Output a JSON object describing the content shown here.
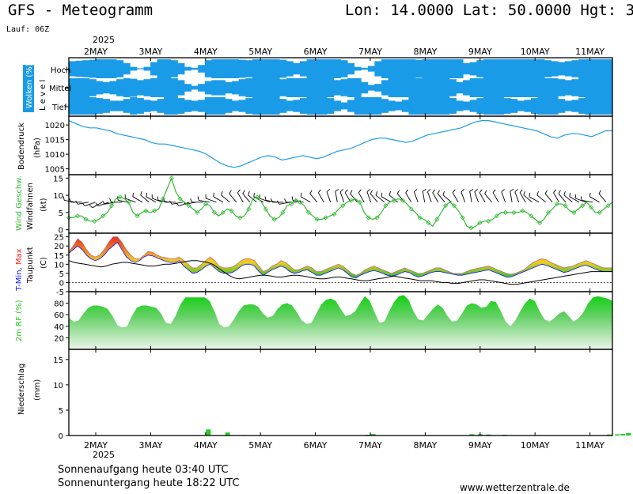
{
  "header": {
    "title": "GFS - Meteogramm",
    "location": "Lon: 14.0000 Lat: 50.0000 Hgt: 3",
    "run": "Lauf: 06Z",
    "year_top": "2025",
    "year_bottom": "2025"
  },
  "footer": {
    "sunrise": "Sonnenaufgang heute 03:40 UTC",
    "sunset": "Sonnenuntergang heute 18:22 UTC",
    "source": "www.wetterzentrale.de"
  },
  "colors": {
    "cloud": "#1a9be8",
    "pressure": "#1a9be8",
    "wind": "#33bb33",
    "tmin": "#1010ff",
    "tmax": "#ff2020",
    "rh": "#22cc22",
    "precip": "#22cc22"
  },
  "chart_data": [
    {
      "type": "heatmap",
      "panel": "clouds",
      "ylabel": "Wolken (%)",
      "ylabel2": "L e v e l",
      "categories": [
        "Hoch",
        "Mittel",
        "Tief"
      ],
      "x_day_ticks": [
        "2MAY",
        "3MAY",
        "4MAY",
        "5MAY",
        "6MAY",
        "7MAY",
        "8MAY",
        "9MAY",
        "10MAY",
        "11MAY"
      ],
      "hoch": [
        80,
        85,
        90,
        95,
        100,
        100,
        100,
        90,
        60,
        20,
        5,
        20,
        70,
        100,
        100,
        90,
        60,
        20,
        10,
        40,
        90,
        100,
        100,
        100,
        100,
        95,
        90,
        100,
        100,
        100,
        100,
        95,
        80,
        60,
        80,
        100,
        100,
        100,
        100,
        100,
        90,
        60,
        20,
        10,
        30,
        80,
        100,
        100,
        100,
        100,
        100,
        95,
        100,
        100,
        100,
        100,
        100,
        100,
        60,
        70,
        90,
        100,
        100,
        100,
        100,
        100,
        100,
        100,
        100,
        100,
        90,
        80,
        70,
        80,
        90,
        100,
        100,
        100,
        100,
        100
      ],
      "mittel": [
        100,
        100,
        100,
        90,
        70,
        60,
        70,
        90,
        100,
        95,
        80,
        90,
        100,
        100,
        100,
        100,
        80,
        40,
        20,
        40,
        70,
        80,
        80,
        60,
        70,
        90,
        100,
        100,
        100,
        100,
        100,
        90,
        100,
        100,
        100,
        100,
        100,
        100,
        100,
        80,
        90,
        100,
        100,
        60,
        30,
        40,
        80,
        100,
        100,
        100,
        100,
        100,
        100,
        100,
        100,
        100,
        90,
        60,
        80,
        100,
        100,
        100,
        100,
        100,
        100,
        100,
        100,
        100,
        100,
        100,
        100,
        100,
        90,
        80,
        90,
        100,
        100,
        100,
        100,
        100
      ],
      "tief": [
        100,
        100,
        100,
        100,
        90,
        80,
        60,
        60,
        80,
        100,
        90,
        70,
        60,
        80,
        100,
        100,
        90,
        70,
        60,
        70,
        100,
        100,
        100,
        80,
        60,
        70,
        90,
        100,
        100,
        100,
        100,
        80,
        60,
        70,
        90,
        100,
        100,
        100,
        90,
        60,
        40,
        70,
        100,
        100,
        100,
        100,
        80,
        60,
        50,
        70,
        100,
        100,
        100,
        100,
        100,
        100,
        90,
        60,
        50,
        70,
        90,
        100,
        100,
        100,
        90,
        80,
        60,
        70,
        90,
        100,
        100,
        100,
        80,
        60,
        70,
        90,
        100,
        100,
        100,
        100
      ]
    },
    {
      "type": "line",
      "panel": "pressure",
      "ylabel": "Bodendruck",
      "unit": "(hPa)",
      "ylim": [
        1003,
        1023
      ],
      "yticks": [
        1005,
        1010,
        1015,
        1020
      ],
      "values": [
        1021.5,
        1020.5,
        1019.5,
        1019,
        1019,
        1018.5,
        1018,
        1017,
        1016.5,
        1016,
        1015.5,
        1015,
        1014,
        1013.5,
        1013.5,
        1013,
        1012.5,
        1012,
        1011.5,
        1011,
        1010,
        1008.5,
        1007,
        1006,
        1005.5,
        1006,
        1007,
        1008,
        1009,
        1009.5,
        1009,
        1008,
        1008.5,
        1009,
        1009.5,
        1009,
        1008.5,
        1009,
        1010,
        1011,
        1011.5,
        1012,
        1013,
        1014,
        1015,
        1015.5,
        1015.5,
        1015,
        1014.5,
        1014,
        1014.5,
        1015.5,
        1016.5,
        1017,
        1017.5,
        1018,
        1018.5,
        1019,
        1020,
        1021,
        1021.5,
        1021.5,
        1021,
        1020.5,
        1020,
        1019.5,
        1019,
        1018.5,
        1018,
        1017,
        1016,
        1015.5,
        1016.5,
        1017,
        1017,
        1016.5,
        1016,
        1017,
        1018,
        1018
      ]
    },
    {
      "type": "line",
      "panel": "wind",
      "ylabel": "Wind Geschw.",
      "ylabel2": "Windfahnen",
      "unit": "(kt)",
      "ylim": [
        -1,
        16
      ],
      "yticks": [
        0,
        5,
        10,
        15
      ],
      "values": [
        3.5,
        3.5,
        4,
        4,
        3,
        2.5,
        2.5,
        3,
        4,
        5,
        7,
        9,
        9.5,
        9,
        8,
        5,
        4,
        5,
        5.5,
        5,
        5.5,
        6,
        9,
        12,
        15,
        11,
        9,
        8,
        7,
        6,
        5,
        6,
        7.5,
        7,
        5,
        4,
        5,
        6,
        5.5,
        4,
        3.5,
        4,
        6,
        9,
        9.5,
        8,
        6,
        4,
        3,
        3.5,
        5,
        7,
        7.5,
        9,
        8,
        7,
        5,
        4,
        3,
        3,
        3.5,
        4,
        4.5,
        6,
        7,
        8,
        8.5,
        9,
        8,
        5,
        3.5,
        3,
        3.5,
        5,
        7,
        8,
        8.5,
        9,
        8.5,
        7.5,
        6,
        5,
        3.5,
        3,
        2,
        1,
        3,
        5,
        7,
        8,
        7,
        5.5,
        3.5,
        1,
        0.5,
        1,
        2,
        2.5,
        2.5,
        3,
        4,
        5,
        5,
        5,
        5,
        5,
        5.5,
        5,
        4,
        3,
        2,
        3,
        5,
        6,
        7.5,
        7.5,
        7,
        5.5,
        5,
        6,
        7,
        8,
        6.5,
        5,
        5,
        6,
        7,
        8
      ],
      "barb_dir_deg": [
        280,
        270,
        260,
        250,
        240,
        250,
        260,
        270,
        280,
        290,
        300,
        310,
        300,
        290,
        280,
        270,
        260,
        250,
        260,
        270,
        280,
        290,
        300,
        310,
        320,
        330,
        320,
        310,
        300,
        290,
        280,
        270,
        260,
        270,
        280,
        300,
        320,
        330,
        340,
        350,
        340,
        330,
        320,
        330,
        340,
        320,
        310,
        300,
        310,
        320,
        330,
        340,
        350,
        340,
        330,
        320,
        310,
        330,
        340,
        350,
        340,
        330,
        320,
        330,
        340,
        350,
        340,
        330,
        310,
        300,
        310,
        320,
        330,
        320,
        310,
        300,
        290,
        280,
        300,
        320
      ]
    },
    {
      "type": "area",
      "panel": "temperature",
      "ylabel_parts": [
        "T-Min,",
        " Max"
      ],
      "ylabel2": "Taupunkt",
      "unit": "(C)",
      "ylim": [
        -5,
        27
      ],
      "yticks": [
        -5,
        0,
        5,
        10,
        15,
        20,
        25
      ],
      "tmin": [
        16,
        18,
        20,
        18,
        15,
        13,
        12,
        13,
        15,
        18,
        20,
        22,
        18,
        14,
        12,
        11,
        12,
        14,
        15,
        14.5,
        13.5,
        12.5,
        11.5,
        11,
        11,
        12,
        9,
        7,
        5,
        5.5,
        7,
        9,
        10,
        8,
        6,
        5,
        5,
        5.5,
        7,
        9,
        10,
        10,
        9,
        6,
        4,
        5.5,
        7,
        8,
        9,
        8,
        6,
        5,
        5.5,
        6.5,
        7,
        5.5,
        4,
        4,
        5,
        6,
        7,
        8,
        7,
        5,
        3,
        2.5,
        4,
        5,
        6,
        6.5,
        6,
        5,
        4,
        3.5,
        4,
        5,
        6,
        5.5,
        4,
        3,
        3.5,
        4.5,
        5.5,
        6,
        6,
        5.5,
        5,
        4.5,
        4,
        4,
        4.5,
        5,
        5.5,
        6,
        6.5,
        7,
        6,
        5,
        4,
        3,
        3,
        4,
        5,
        6,
        7,
        8,
        9,
        10,
        9.5,
        8.5,
        7.5,
        6.5,
        5.5,
        6,
        7,
        8,
        9,
        9.5,
        8.5,
        7.5,
        6.5,
        6,
        6,
        6
      ],
      "tmax": [
        17,
        20,
        24,
        22,
        18,
        15,
        14,
        15,
        18,
        22,
        25,
        25,
        22,
        18,
        15,
        13,
        13,
        15,
        17,
        16.5,
        15,
        14,
        13.5,
        13,
        13,
        14,
        12,
        10,
        8,
        8,
        10,
        12,
        14,
        12,
        9,
        8,
        8,
        8.5,
        10,
        12,
        13,
        13,
        12,
        9,
        6,
        7,
        9,
        10,
        12,
        11,
        9,
        7,
        7,
        8,
        9,
        8,
        6,
        6,
        7,
        8,
        9,
        10,
        9,
        7,
        5,
        4,
        5,
        7,
        8,
        9,
        8,
        7,
        6,
        5,
        6,
        7,
        8,
        7,
        6,
        5,
        5,
        6,
        7,
        8,
        8,
        7,
        6,
        5,
        5,
        5,
        6,
        7,
        7.5,
        8,
        8.5,
        9,
        8,
        7,
        6,
        5,
        4.5,
        5,
        6,
        7,
        9,
        11,
        12,
        13,
        12.5,
        11,
        10,
        9,
        8,
        8.5,
        9,
        10,
        11,
        12,
        11,
        10,
        9,
        8,
        8,
        8
      ],
      "dewpoint": [
        12,
        11,
        10.5,
        10,
        9.5,
        9,
        8.5,
        9,
        10,
        10.5,
        11,
        11,
        10.5,
        10,
        9.5,
        9,
        9,
        9.5,
        10,
        10,
        10.5,
        11,
        11.5,
        12,
        12,
        11.5,
        11,
        10,
        8,
        6,
        4,
        2.5,
        2,
        2.5,
        3,
        3.5,
        4,
        4,
        3.5,
        3,
        3,
        3.5,
        4,
        4,
        3.5,
        3,
        2.5,
        2,
        2,
        2.5,
        3,
        3,
        2.5,
        2,
        1.5,
        1,
        1,
        1.5,
        2,
        2.5,
        3,
        3.5,
        3,
        2.5,
        2,
        1.5,
        1,
        1,
        1,
        0.5,
        0,
        0,
        -0.5,
        -0.5,
        0,
        0.5,
        1,
        1.5,
        1.5,
        1,
        0.5,
        0,
        -0.5,
        -1,
        -1,
        -0.5,
        0,
        0.5,
        1,
        1.5,
        2,
        2.5,
        3,
        3.5,
        4,
        4.5,
        5,
        5.5,
        6,
        6,
        6,
        6,
        6
      ]
    },
    {
      "type": "area",
      "panel": "humidity",
      "ylabel": "2m RF (%)",
      "ylim": [
        0,
        100
      ],
      "yticks": [
        20,
        40,
        60,
        80
      ],
      "values": [
        55,
        48,
        50,
        62,
        72,
        76,
        76,
        74,
        70,
        58,
        42,
        38,
        40,
        58,
        72,
        76,
        76,
        74,
        72,
        62,
        46,
        44,
        58,
        78,
        90,
        90,
        90,
        90,
        90,
        84,
        66,
        44,
        38,
        40,
        52,
        66,
        76,
        78,
        78,
        74,
        62,
        55,
        58,
        70,
        78,
        80,
        76,
        64,
        50,
        44,
        46,
        62,
        78,
        86,
        88,
        84,
        70,
        58,
        60,
        66,
        80,
        92,
        84,
        64,
        46,
        48,
        66,
        82,
        92,
        94,
        86,
        66,
        52,
        50,
        60,
        70,
        78,
        72,
        58,
        48,
        50,
        62,
        76,
        80,
        78,
        72,
        74,
        84,
        82,
        66,
        48,
        40,
        50,
        66,
        80,
        88,
        84,
        66,
        52,
        48,
        54,
        62,
        66,
        58,
        48,
        54,
        64,
        80,
        90,
        92,
        90,
        88,
        84
      ]
    },
    {
      "type": "bar",
      "panel": "precipitation",
      "ylabel": "Niederschlag",
      "unit": "(mm)",
      "ylim": [
        0,
        17
      ],
      "yticks": [
        0,
        5,
        10,
        15
      ],
      "bars": [
        {
          "day_offset": 2.55,
          "value": 1.2
        },
        {
          "day_offset": 2.9,
          "value": 0.6
        },
        {
          "day_offset": 3.2,
          "value": 0.1
        },
        {
          "day_offset": 5.45,
          "value": 0.15
        },
        {
          "day_offset": 5.55,
          "value": 0.3
        },
        {
          "day_offset": 7.35,
          "value": 0.25
        },
        {
          "day_offset": 7.5,
          "value": 0.25
        },
        {
          "day_offset": 7.65,
          "value": 0.2
        },
        {
          "day_offset": 7.95,
          "value": 0.15
        },
        {
          "day_offset": 9.85,
          "value": 0.2
        },
        {
          "day_offset": 10.0,
          "value": 0.25
        },
        {
          "day_offset": 10.1,
          "value": 0.3
        },
        {
          "day_offset": 10.2,
          "value": 0.5
        }
      ]
    }
  ]
}
